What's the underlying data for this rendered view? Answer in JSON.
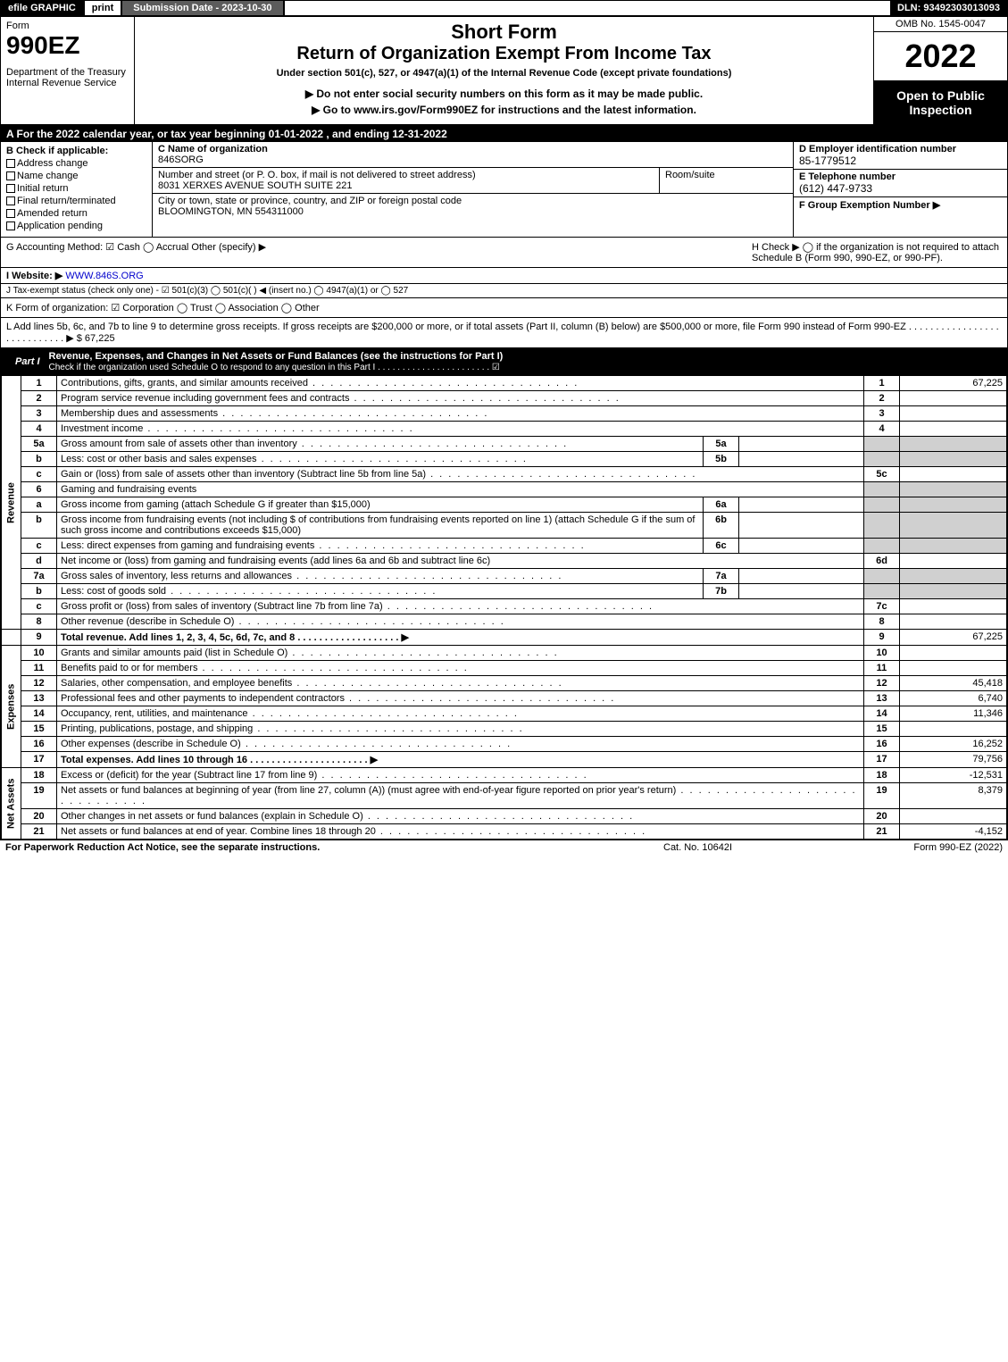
{
  "topbar": {
    "efile": "efile GRAPHIC",
    "print": "print",
    "submission": "Submission Date - 2023-10-30",
    "dln": "DLN: 93492303013093"
  },
  "header": {
    "form_label": "Form",
    "form_no": "990EZ",
    "dept": "Department of the Treasury\nInternal Revenue Service",
    "short": "Short Form",
    "return": "Return of Organization Exempt From Income Tax",
    "under": "Under section 501(c), 527, or 4947(a)(1) of the Internal Revenue Code (except private foundations)",
    "donot": "▶ Do not enter social security numbers on this form as it may be made public.",
    "goto": "▶ Go to www.irs.gov/Form990EZ for instructions and the latest information.",
    "omb": "OMB No. 1545-0047",
    "year": "2022",
    "open": "Open to Public Inspection"
  },
  "A": "A  For the 2022 calendar year, or tax year beginning 01-01-2022 , and ending 12-31-2022",
  "B": {
    "label": "B  Check if applicable:",
    "opts": [
      "Address change",
      "Name change",
      "Initial return",
      "Final return/terminated",
      "Amended return",
      "Application pending"
    ]
  },
  "C": {
    "name_label": "C Name of organization",
    "name": "846SORG",
    "addr_label": "Number and street (or P. O. box, if mail is not delivered to street address)",
    "addr": "8031 XERXES AVENUE SOUTH SUITE 221",
    "room_label": "Room/suite",
    "city_label": "City or town, state or province, country, and ZIP or foreign postal code",
    "city": "BLOOMINGTON, MN  554311000"
  },
  "D": {
    "label": "D Employer identification number",
    "val": "85-1779512"
  },
  "E": {
    "label": "E Telephone number",
    "val": "(612) 447-9733"
  },
  "F": {
    "label": "F Group Exemption Number   ▶",
    "val": ""
  },
  "G": "G Accounting Method:   ☑ Cash  ◯ Accrual  Other (specify) ▶",
  "H": "H   Check ▶  ◯  if the organization is not required to attach Schedule B (Form 990, 990-EZ, or 990-PF).",
  "I": {
    "label": "I Website: ▶",
    "val": "WWW.846S.ORG"
  },
  "J": "J Tax-exempt status (check only one) - ☑ 501(c)(3) ◯ 501(c)(  ) ◀ (insert no.) ◯ 4947(a)(1) or ◯ 527",
  "K": "K Form of organization:   ☑ Corporation  ◯ Trust  ◯ Association  ◯ Other",
  "L": "L Add lines 5b, 6c, and 7b to line 9 to determine gross receipts. If gross receipts are $200,000 or more, or if total assets (Part II, column (B) below) are $500,000 or more, file Form 990 instead of Form 990-EZ . . . . . . . . . . . . . . . . . . . . . . . . . . . . ▶ $ 67,225",
  "part1": {
    "label": "Part I",
    "title": "Revenue, Expenses, and Changes in Net Assets or Fund Balances (see the instructions for Part I)",
    "sub": "Check if the organization used Schedule O to respond to any question in this Part I . . . . . . . . . . . . . . . . . . . . . . .  ☑"
  },
  "revenue_label": "Revenue",
  "expenses_label": "Expenses",
  "netassets_label": "Net Assets",
  "lines": {
    "1": {
      "desc": "Contributions, gifts, grants, and similar amounts received",
      "rn": "1",
      "val": "67,225"
    },
    "2": {
      "desc": "Program service revenue including government fees and contracts",
      "rn": "2",
      "val": ""
    },
    "3": {
      "desc": "Membership dues and assessments",
      "rn": "3",
      "val": ""
    },
    "4": {
      "desc": "Investment income",
      "rn": "4",
      "val": ""
    },
    "5a": {
      "desc": "Gross amount from sale of assets other than inventory",
      "sub": "5a"
    },
    "5b": {
      "desc": "Less: cost or other basis and sales expenses",
      "sub": "5b"
    },
    "5c": {
      "desc": "Gain or (loss) from sale of assets other than inventory (Subtract line 5b from line 5a)",
      "rn": "5c",
      "val": ""
    },
    "6": {
      "desc": "Gaming and fundraising events"
    },
    "6a": {
      "desc": "Gross income from gaming (attach Schedule G if greater than $15,000)",
      "sub": "6a"
    },
    "6b": {
      "desc": "Gross income from fundraising events (not including $                    of contributions from fundraising events reported on line 1) (attach Schedule G if the sum of such gross income and contributions exceeds $15,000)",
      "sub": "6b"
    },
    "6c": {
      "desc": "Less: direct expenses from gaming and fundraising events",
      "sub": "6c"
    },
    "6d": {
      "desc": "Net income or (loss) from gaming and fundraising events (add lines 6a and 6b and subtract line 6c)",
      "rn": "6d",
      "val": ""
    },
    "7a": {
      "desc": "Gross sales of inventory, less returns and allowances",
      "sub": "7a"
    },
    "7b": {
      "desc": "Less: cost of goods sold",
      "sub": "7b"
    },
    "7c": {
      "desc": "Gross profit or (loss) from sales of inventory (Subtract line 7b from line 7a)",
      "rn": "7c",
      "val": ""
    },
    "8": {
      "desc": "Other revenue (describe in Schedule O)",
      "rn": "8",
      "val": ""
    },
    "9": {
      "desc": "Total revenue. Add lines 1, 2, 3, 4, 5c, 6d, 7c, and 8  . . . . . . . . . . . . . . . . . . . ▶",
      "rn": "9",
      "val": "67,225"
    },
    "10": {
      "desc": "Grants and similar amounts paid (list in Schedule O)",
      "rn": "10",
      "val": ""
    },
    "11": {
      "desc": "Benefits paid to or for members",
      "rn": "11",
      "val": ""
    },
    "12": {
      "desc": "Salaries, other compensation, and employee benefits",
      "rn": "12",
      "val": "45,418"
    },
    "13": {
      "desc": "Professional fees and other payments to independent contractors",
      "rn": "13",
      "val": "6,740"
    },
    "14": {
      "desc": "Occupancy, rent, utilities, and maintenance",
      "rn": "14",
      "val": "11,346"
    },
    "15": {
      "desc": "Printing, publications, postage, and shipping",
      "rn": "15",
      "val": ""
    },
    "16": {
      "desc": "Other expenses (describe in Schedule O)",
      "rn": "16",
      "val": "16,252"
    },
    "17": {
      "desc": "Total expenses. Add lines 10 through 16   . . . . . . . . . . . . . . . . . . . . . . ▶",
      "rn": "17",
      "val": "79,756"
    },
    "18": {
      "desc": "Excess or (deficit) for the year (Subtract line 17 from line 9)",
      "rn": "18",
      "val": "-12,531"
    },
    "19": {
      "desc": "Net assets or fund balances at beginning of year (from line 27, column (A)) (must agree with end-of-year figure reported on prior year's return)",
      "rn": "19",
      "val": "8,379"
    },
    "20": {
      "desc": "Other changes in net assets or fund balances (explain in Schedule O)",
      "rn": "20",
      "val": ""
    },
    "21": {
      "desc": "Net assets or fund balances at end of year. Combine lines 18 through 20",
      "rn": "21",
      "val": "-4,152"
    }
  },
  "footer": {
    "left": "For Paperwork Reduction Act Notice, see the separate instructions.",
    "mid": "Cat. No. 10642I",
    "right": "Form 990-EZ (2022)"
  },
  "colors": {
    "black": "#000000",
    "white": "#ffffff",
    "darkgray": "#5c5c5c",
    "shade": "#d0d0d0"
  }
}
